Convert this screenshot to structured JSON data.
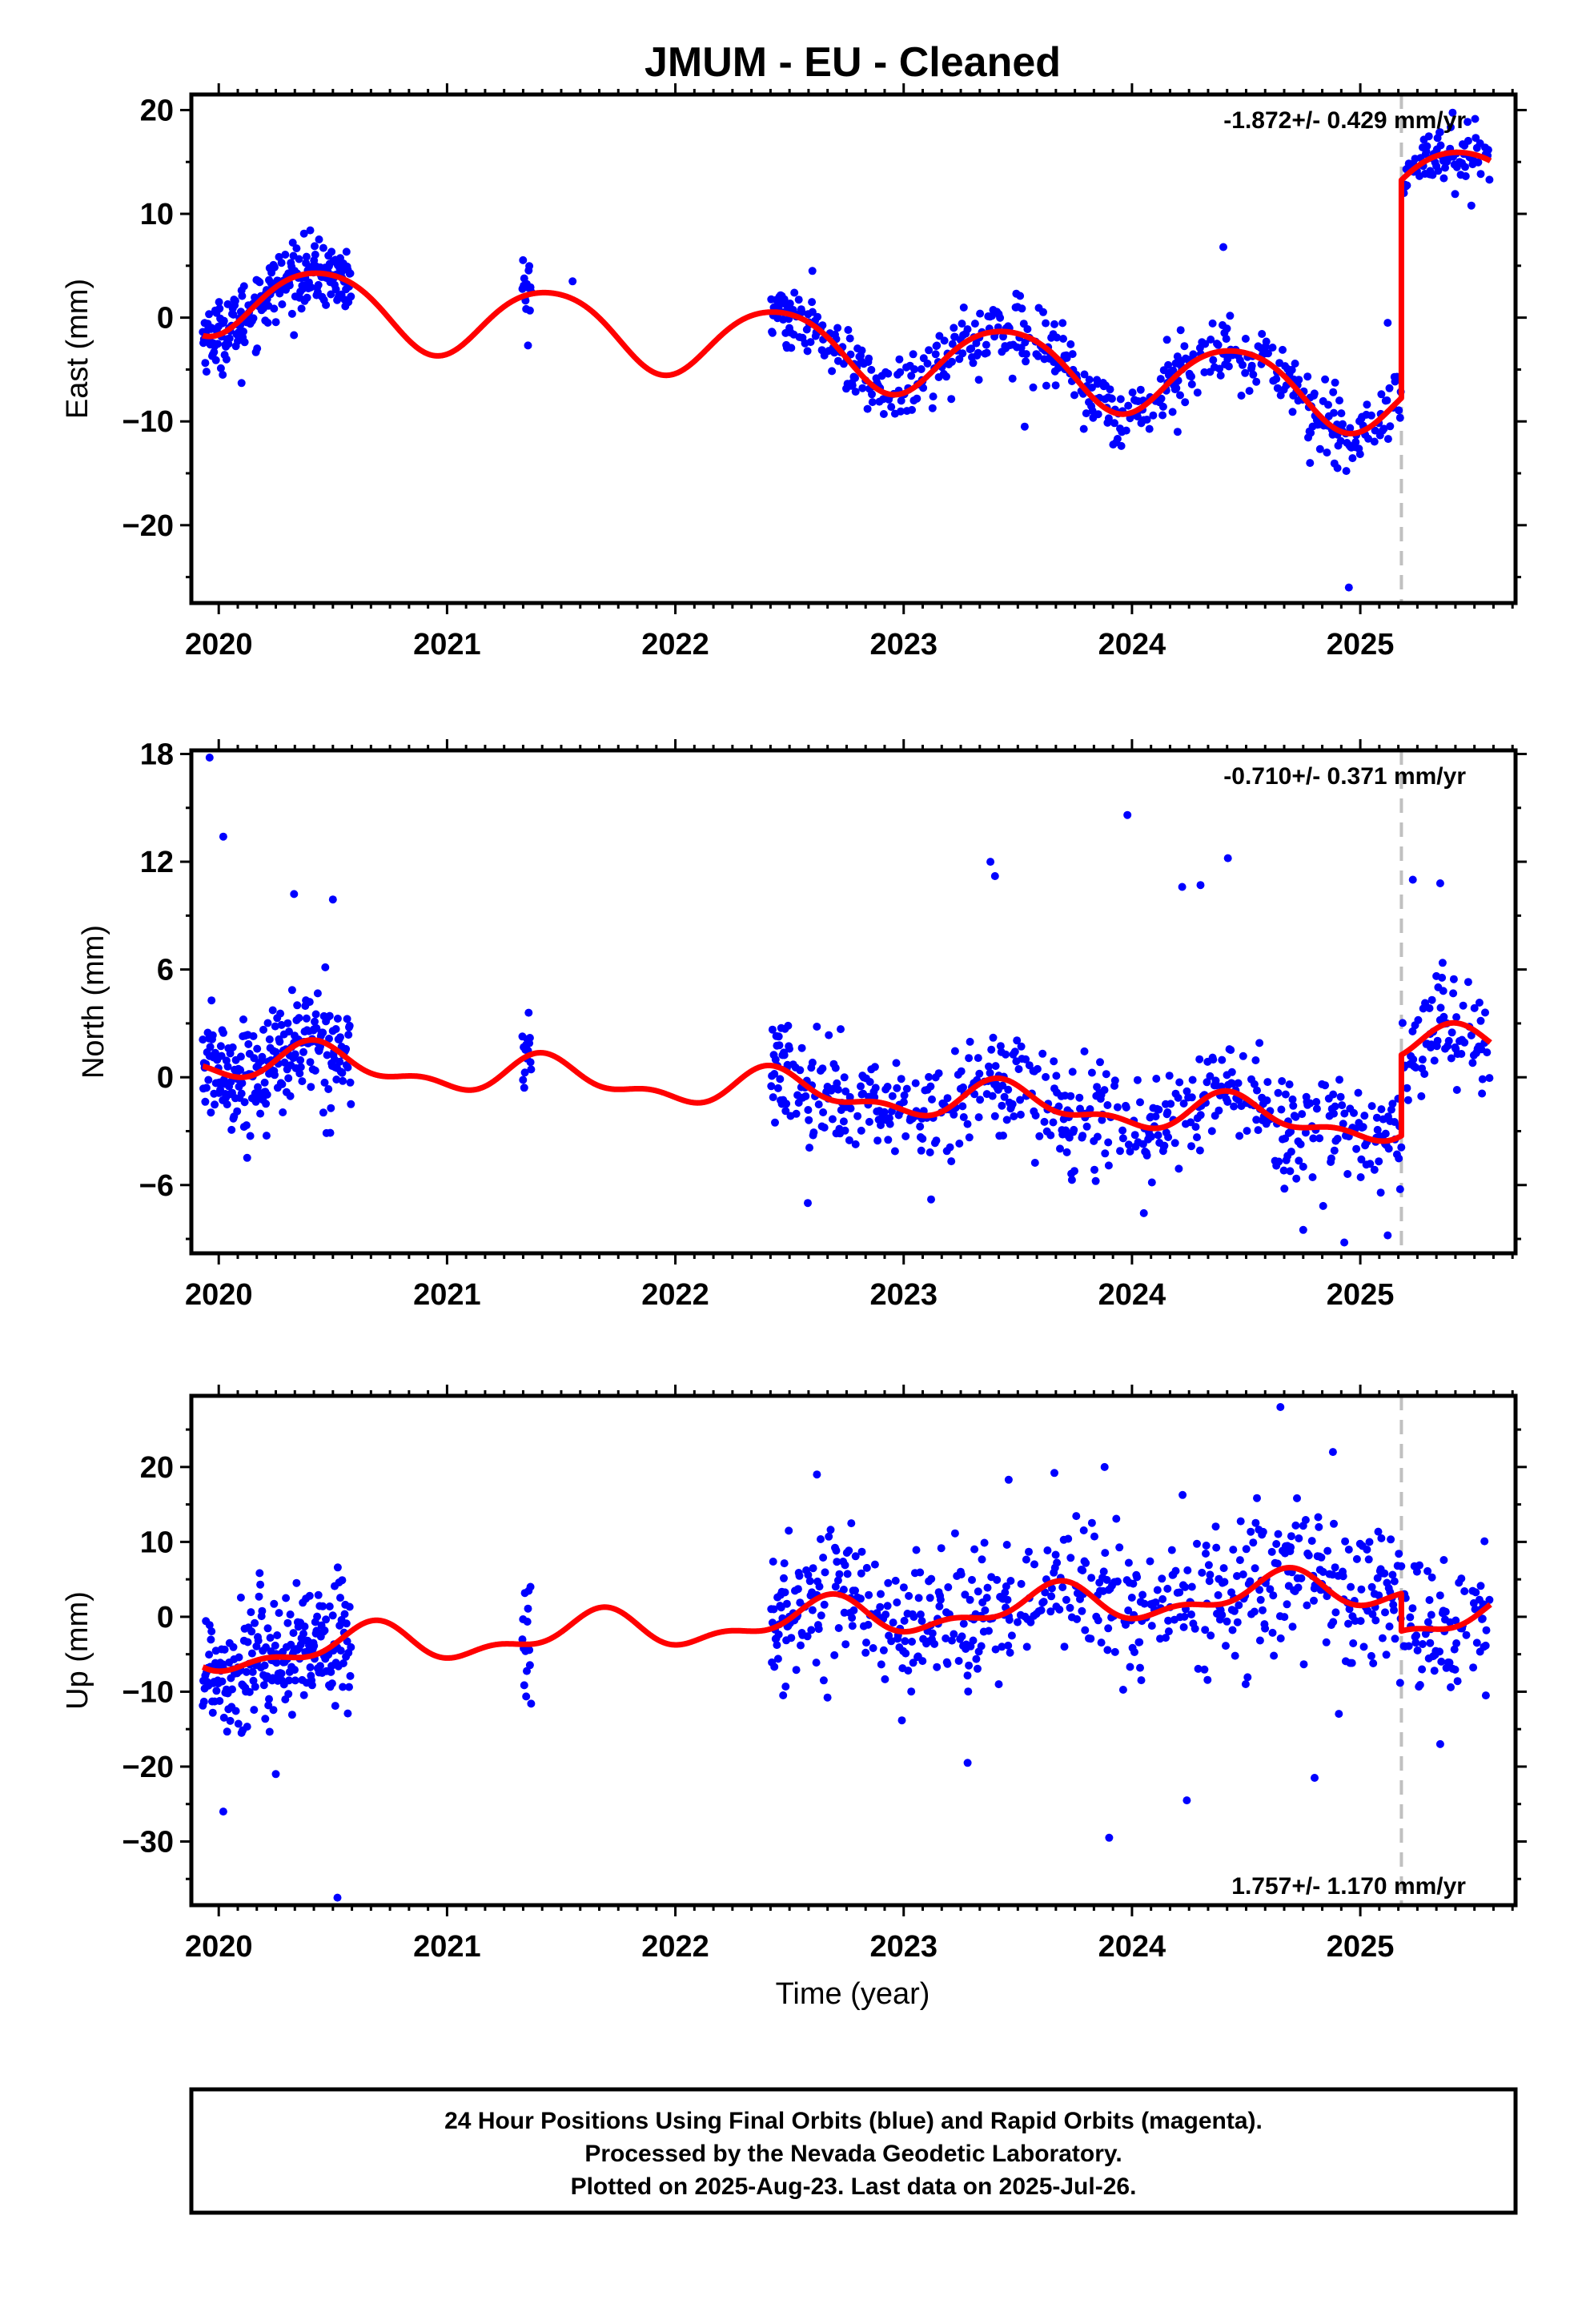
{
  "title": "JMUM  - EU - Cleaned",
  "xlabel": "Time (year)",
  "footer": {
    "line1": "24 Hour Positions Using Final Orbits (blue) and Rapid Orbits (magenta).",
    "line2": "Processed by the Nevada Geodetic Laboratory.",
    "line3": "Plotted on 2025-Aug-23. Last data on 2025-Jul-26."
  },
  "colors": {
    "points": "#0000ff",
    "model": "#ff0000",
    "break": "#c0c0c0",
    "frame": "#000000"
  },
  "chart_data": [
    {
      "type": "scatter",
      "component": "east",
      "ylabel": "East (mm)",
      "rate": "-1.872+/- 0.429 mm/yr",
      "rate_position": "top-right",
      "xlim": [
        2019.88,
        2025.68
      ],
      "ylim": [
        -27.5,
        21.5
      ],
      "xticks": [
        2020,
        2021,
        2022,
        2023,
        2024,
        2025
      ],
      "yticks": [
        -20,
        -10,
        0,
        10,
        20
      ],
      "break_epoch": 2025.18,
      "data_segments": [
        [
          2019.93,
          2020.58
        ],
        [
          2021.33,
          2021.37
        ],
        [
          2022.42,
          2025.57
        ]
      ],
      "model": {
        "offset": 2.0,
        "trend": -1.872,
        "t0": 2020.0,
        "annual": {
          "amp": 3.5,
          "peak": 2020.45
        },
        "semiannual": {
          "amp": 0.4,
          "peak": 2020.2
        },
        "step": 21.0,
        "noise_sd": 1.6
      },
      "outliers": [
        [
          2021.55,
          3.5
        ],
        [
          2022.6,
          4.5
        ],
        [
          2023.53,
          -10.5
        ],
        [
          2024.2,
          -11.0
        ],
        [
          2024.4,
          6.8
        ],
        [
          2024.78,
          -14.0
        ],
        [
          2024.9,
          -14.5
        ],
        [
          2024.95,
          -26.0
        ],
        [
          2025.12,
          -0.5
        ],
        [
          2020.1,
          -6.3
        ]
      ]
    },
    {
      "type": "scatter",
      "component": "north",
      "ylabel": "North (mm)",
      "rate": "-0.710+/- 0.371 mm/yr",
      "rate_position": "top-right",
      "xlim": [
        2019.88,
        2025.68
      ],
      "ylim": [
        -9.8,
        18.2
      ],
      "xticks": [
        2020,
        2021,
        2022,
        2023,
        2024,
        2025
      ],
      "yticks": [
        -6,
        0,
        6,
        12,
        18
      ],
      "break_epoch": 2025.18,
      "data_segments": [
        [
          2019.93,
          2020.58
        ],
        [
          2021.33,
          2021.37
        ],
        [
          2022.42,
          2025.57
        ]
      ],
      "model": {
        "offset": 1.0,
        "trend": -0.71,
        "t0": 2020.0,
        "annual": {
          "amp": 0.9,
          "peak": 2020.45
        },
        "semiannual": {
          "amp": 0.5,
          "peak": 2020.4
        },
        "step": 4.5,
        "noise_sd": 1.5
      },
      "outliers": [
        [
          2019.96,
          17.8
        ],
        [
          2020.02,
          13.4
        ],
        [
          2020.33,
          10.2
        ],
        [
          2020.5,
          9.9
        ],
        [
          2023.38,
          12.0
        ],
        [
          2023.4,
          11.2
        ],
        [
          2023.98,
          14.6
        ],
        [
          2024.22,
          10.6
        ],
        [
          2024.3,
          10.7
        ],
        [
          2024.42,
          12.2
        ],
        [
          2025.23,
          11.0
        ],
        [
          2025.35,
          10.8
        ],
        [
          2022.58,
          -7.0
        ],
        [
          2023.12,
          -6.8
        ],
        [
          2024.75,
          -8.5
        ],
        [
          2024.93,
          -9.2
        ],
        [
          2025.12,
          -8.8
        ]
      ]
    },
    {
      "type": "scatter",
      "component": "up",
      "ylabel": "Up (mm)",
      "rate": "1.757+/- 1.170 mm/yr",
      "rate_position": "bottom-right",
      "xlim": [
        2019.88,
        2025.68
      ],
      "ylim": [
        -38.5,
        29.5
      ],
      "xticks": [
        2020,
        2021,
        2022,
        2023,
        2024,
        2025
      ],
      "yticks": [
        -30,
        -20,
        -10,
        0,
        10,
        20
      ],
      "break_epoch": 2025.18,
      "data_segments": [
        [
          2019.93,
          2020.58
        ],
        [
          2021.33,
          2021.37
        ],
        [
          2022.42,
          2025.57
        ]
      ],
      "model": {
        "offset": -5.0,
        "trend": 1.757,
        "t0": 2020.0,
        "annual": {
          "amp": 2.2,
          "peak": 2020.65
        },
        "semiannual": {
          "amp": 1.2,
          "peak": 2020.2
        },
        "step": -5.0,
        "noise_sd": 4.5
      },
      "outliers": [
        [
          2020.02,
          -26.0
        ],
        [
          2020.52,
          -37.5
        ],
        [
          2020.25,
          -21.0
        ],
        [
          2022.62,
          19.0
        ],
        [
          2023.28,
          -19.5
        ],
        [
          2023.46,
          18.3
        ],
        [
          2023.88,
          20.0
        ],
        [
          2023.9,
          -29.5
        ],
        [
          2024.24,
          -24.5
        ],
        [
          2024.65,
          28.0
        ],
        [
          2024.8,
          -21.5
        ],
        [
          2024.88,
          22.0
        ],
        [
          2025.35,
          -17.0
        ],
        [
          2025.55,
          -10.5
        ]
      ]
    }
  ]
}
